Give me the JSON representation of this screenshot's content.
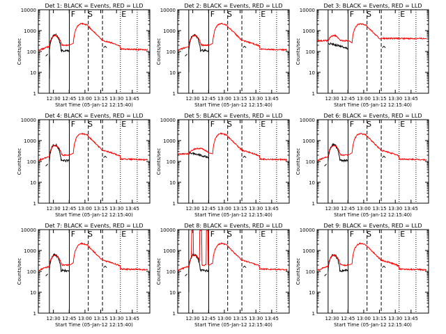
{
  "chart_data": [
    {
      "type": "line",
      "title": "Det 1: BLACK = Events, RED = LLD",
      "variant": 1
    },
    {
      "type": "line",
      "title": "Det 2: BLACK = Events, RED = LLD",
      "variant": 2
    },
    {
      "type": "line",
      "title": "Det 3: BLACK = Events, RED = LLD",
      "variant": 3
    },
    {
      "type": "line",
      "title": "Det 4: BLACK = Events, RED = LLD",
      "variant": 4
    },
    {
      "type": "line",
      "title": "Det 5: BLACK = Events, RED = LLD",
      "variant": 5
    },
    {
      "type": "line",
      "title": "Det 6: BLACK = Events, RED = LLD",
      "variant": 6
    },
    {
      "type": "line",
      "title": "Det 7: BLACK = Events, RED = LLD",
      "variant": 7
    },
    {
      "type": "line",
      "title": "Det 8: BLACK = Events, RED = LLD",
      "variant": 8
    },
    {
      "type": "line",
      "title": "Det 9: BLACK = Events, RED = LLD",
      "variant": 9
    }
  ],
  "shared": {
    "xlabel": "Start Time (05-Jan-12 12:15:40)",
    "ylabel": "Counts/sec",
    "x_ticks": [
      "12:30",
      "12:45",
      "13:00",
      "13:15",
      "13:30",
      "13:45"
    ],
    "x_tick_minutes": [
      14.33,
      29.33,
      44.33,
      59.33,
      74.33,
      89.33
    ],
    "x_range_minutes": [
      0,
      106
    ],
    "y_scale": "log",
    "y_range": [
      1,
      10000
    ],
    "y_ticks": [
      "1",
      "10",
      "100",
      "1000",
      "10000"
    ],
    "markers": {
      "solid_minutes": [
        10.5,
        29.5
      ],
      "dashed_minutes": [
        47.5,
        61
      ],
      "dotted_minutes": [
        78,
        94
      ],
      "letters": [
        {
          "text": "F",
          "minute": 31
        },
        {
          "text": "S",
          "minute": 47
        },
        {
          "text": "E",
          "minute": 79
        }
      ]
    },
    "series": [
      {
        "name": "Events",
        "color": "#000000"
      },
      {
        "name": "LLD",
        "color": "#ff0000"
      }
    ]
  }
}
